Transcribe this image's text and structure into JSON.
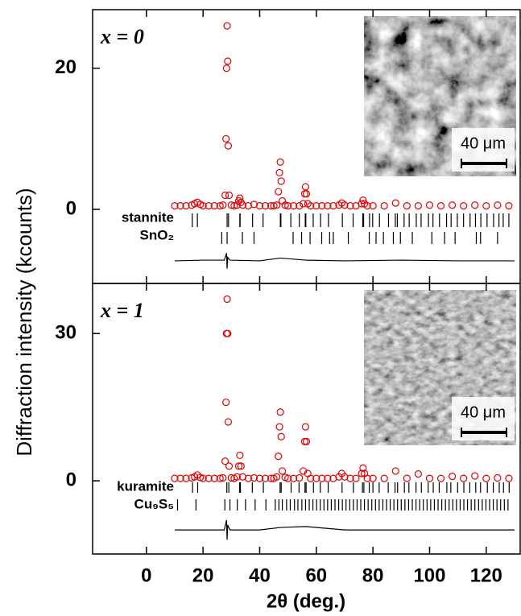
{
  "chart_data": [
    {
      "type": "scatter",
      "annotation": "x = 0",
      "inset_scale": "40 μm",
      "ylabel": "Diffraction intensity (kcounts)",
      "xlim": [
        -19,
        132
      ],
      "xticks": [
        0,
        20,
        40,
        60,
        80,
        100,
        120
      ],
      "ylim": [
        -10.5,
        28.3
      ],
      "yticks": [
        0,
        20
      ],
      "observed": {
        "color": "#e00000",
        "x": [
          10,
          12,
          14,
          16,
          17,
          18,
          19,
          20,
          22,
          24,
          26,
          27,
          27.8,
          28.1,
          28.3,
          28.5,
          28.7,
          28.9,
          29.2,
          30,
          31,
          32,
          32.6,
          33,
          33.4,
          34,
          36,
          38,
          40,
          42,
          44,
          45,
          46,
          46.6,
          47,
          47.3,
          47.6,
          48,
          49,
          50,
          52,
          54,
          55.4,
          55.9,
          56.2,
          56.5,
          57,
          58,
          60,
          62,
          64,
          66,
          68,
          69,
          70,
          72,
          74,
          76,
          76.5,
          77,
          78,
          80,
          84,
          88,
          92,
          96,
          100,
          104,
          108,
          112,
          116,
          120,
          124,
          128
        ],
        "values": [
          0.5,
          0.5,
          0.5,
          0.6,
          0.8,
          1.0,
          0.7,
          0.5,
          0.5,
          0.5,
          0.5,
          0.6,
          2,
          10,
          20,
          26,
          21,
          9,
          2,
          0.6,
          0.5,
          0.6,
          1.2,
          1.6,
          1.0,
          0.6,
          0.5,
          0.7,
          0.5,
          0.5,
          0.5,
          0.5,
          0.6,
          2.5,
          5.2,
          6.7,
          4,
          1.2,
          0.6,
          0.5,
          0.5,
          0.5,
          0.8,
          2.2,
          3.2,
          2.2,
          0.8,
          0.5,
          0.5,
          0.5,
          0.5,
          0.5,
          0.6,
          0.9,
          0.6,
          0.5,
          0.5,
          0.8,
          1.3,
          0.8,
          0.5,
          0.5,
          0.5,
          0.9,
          0.5,
          0.5,
          0.6,
          0.5,
          0.6,
          0.5,
          0.6,
          0.5,
          0.6,
          0.5
        ]
      },
      "difference": {
        "color": "#000000",
        "x": [
          10,
          20,
          27.5,
          28.3,
          28.5,
          28.7,
          29.5,
          40,
          47.3,
          56.2,
          70,
          90,
          110,
          130
        ],
        "values": [
          -7.3,
          -7.2,
          -7.2,
          -6.2,
          -8.4,
          -6.8,
          -7.2,
          -7.3,
          -6.9,
          -7.2,
          -7.3,
          -7.2,
          -7.3,
          -7.3
        ]
      },
      "reflections": [
        {
          "name": "stannite",
          "positions": [
            16.2,
            18.0,
            28.5,
            29.0,
            33.0,
            33.1,
            37.5,
            41.2,
            47.3,
            47.5,
            51.0,
            54.0,
            56.1,
            56.3,
            58.9,
            61.5,
            64.3,
            69.2,
            73.0,
            76.4,
            76.7,
            78.8,
            79.9,
            82.3,
            85.5,
            87.9,
            88.6,
            91.0,
            92.8,
            95.3,
            97.0,
            99.6,
            101.2,
            103.5,
            106.0,
            107.6,
            109.8,
            112.0,
            114.3,
            116.2,
            118.1,
            120.3,
            122.6,
            124.5,
            126.0,
            128.0
          ]
        },
        {
          "name": "SnO₂",
          "positions": [
            26.6,
            28.5,
            33.9,
            38.0,
            51.8,
            54.8,
            57.8,
            61.9,
            64.7,
            66.0,
            71.3,
            78.7,
            81.1,
            83.7,
            87.2,
            89.7,
            93.9,
            100.8,
            105.3,
            109.0,
            116.5,
            118.0,
            124.0
          ]
        }
      ]
    },
    {
      "type": "scatter",
      "annotation": "x = 1",
      "inset_scale": "40 μm",
      "xlabel": "2θ (deg.)",
      "xlim": [
        -19,
        132
      ],
      "xticks": [
        0,
        20,
        40,
        60,
        80,
        100,
        120
      ],
      "ylim": [
        -14.9,
        40.2
      ],
      "yticks": [
        0,
        30
      ],
      "observed": {
        "color": "#e00000",
        "x": [
          10,
          12,
          14,
          16,
          17,
          18,
          19,
          20,
          22,
          24,
          26,
          27,
          27.8,
          28.1,
          28.3,
          28.5,
          28.7,
          28.9,
          29.2,
          30,
          31,
          32,
          32.6,
          33,
          33.4,
          34,
          36,
          38,
          40,
          42,
          44,
          45,
          46,
          46.6,
          47,
          47.3,
          47.6,
          48,
          49,
          50,
          52,
          54,
          55.4,
          55.9,
          56.2,
          56.5,
          57,
          58,
          60,
          62,
          64,
          66,
          68,
          69,
          70,
          72,
          74,
          76,
          76.5,
          77,
          78,
          80,
          84,
          88,
          92,
          96,
          100,
          104,
          108,
          112,
          116,
          120,
          124,
          128
        ],
        "values": [
          0.5,
          0.5,
          0.5,
          0.6,
          0.8,
          1.2,
          0.7,
          0.5,
          0.5,
          0.5,
          0.5,
          0.6,
          4,
          16,
          30,
          37,
          30,
          12,
          3,
          0.6,
          0.5,
          0.8,
          3,
          5.2,
          3,
          0.8,
          0.5,
          0.6,
          0.5,
          0.5,
          0.5,
          0.5,
          0.8,
          5,
          11,
          14,
          9,
          2,
          0.7,
          0.5,
          0.5,
          0.6,
          2,
          8,
          11,
          8,
          1.5,
          0.5,
          0.5,
          0.5,
          0.5,
          0.5,
          0.8,
          1.5,
          0.8,
          0.5,
          0.5,
          1.5,
          2.6,
          1.5,
          0.5,
          0.5,
          0.5,
          2.0,
          0.5,
          1.4,
          0.5,
          0.5,
          0.9,
          0.5,
          1.0,
          0.5,
          0.6,
          0.5
        ]
      },
      "difference": {
        "color": "#000000",
        "x": [
          10,
          20,
          27.5,
          28.3,
          28.5,
          28.7,
          29.5,
          40,
          47.3,
          56.2,
          70,
          90,
          110,
          130
        ],
        "values": [
          -10,
          -10,
          -10,
          -8,
          -12,
          -9,
          -10,
          -10,
          -9.5,
          -9.3,
          -10,
          -10,
          -10,
          -10
        ]
      },
      "reflections": [
        {
          "name": "kuramite",
          "positions": [
            16.3,
            18.1,
            28.4,
            29.1,
            32.9,
            33.2,
            37.4,
            41.3,
            47.2,
            47.6,
            51.1,
            53.9,
            56.0,
            56.4,
            59.0,
            61.4,
            64.2,
            69.1,
            73.1,
            76.3,
            76.8,
            78.7,
            80.0,
            82.2,
            85.4,
            87.8,
            88.7,
            91.1,
            92.7,
            95.2,
            97.1,
            99.5,
            101.3,
            103.4,
            106.1,
            107.5,
            109.9,
            112.1,
            114.2,
            116.3,
            118.0,
            120.4,
            122.5,
            124.6,
            126.1,
            128.1
          ]
        },
        {
          "name": "Cu₉S₅",
          "positions": [
            11.0,
            17.5,
            27.7,
            29.5,
            32.1,
            35.0,
            38.4,
            42.2,
            45.5,
            46.8,
            48.0,
            49.5,
            50.8,
            52.3,
            53.5,
            54.9,
            56.2,
            57.5,
            58.8,
            60.1,
            61.4,
            62.7,
            64.0,
            65.3,
            66.6,
            67.9,
            69.2,
            70.5,
            71.8,
            73.1,
            74.4,
            75.7,
            77.0,
            78.3,
            79.6,
            80.9,
            82.2,
            83.5,
            84.8,
            86.1,
            87.4,
            88.7,
            90.0,
            91.3,
            92.6,
            93.9,
            95.2,
            96.5,
            97.8,
            99.1,
            100.4,
            101.7,
            103.0,
            104.3,
            105.6,
            106.9,
            108.2,
            109.5,
            110.8,
            112.1,
            113.4,
            114.7,
            116.0,
            117.3,
            118.6,
            119.9,
            121.2,
            122.5,
            123.8,
            125.1,
            126.4,
            127.7
          ]
        }
      ]
    }
  ]
}
